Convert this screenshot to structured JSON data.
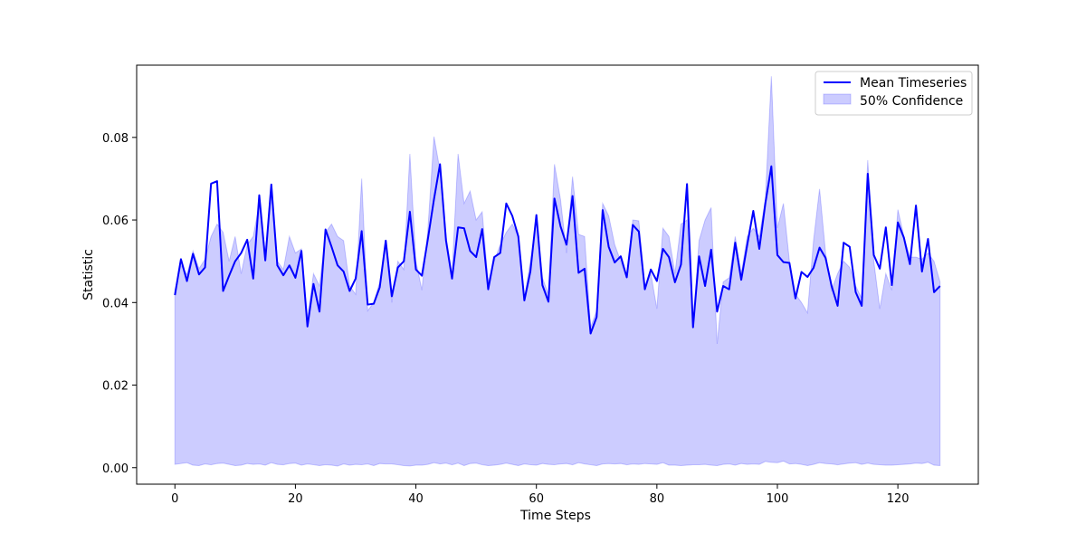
{
  "chart_data": {
    "type": "line",
    "title": "",
    "xlabel": "Time Steps",
    "ylabel": "Statistic",
    "xlim": [
      -6.35,
      133.35
    ],
    "ylim": [
      -0.004,
      0.0975
    ],
    "xticks": [
      0,
      20,
      40,
      60,
      80,
      100,
      120
    ],
    "xtick_labels": [
      "0",
      "20",
      "40",
      "60",
      "80",
      "100",
      "120"
    ],
    "yticks": [
      0.0,
      0.02,
      0.04,
      0.06,
      0.08
    ],
    "ytick_labels": [
      "0.00",
      "0.02",
      "0.04",
      "0.06",
      "0.08"
    ],
    "grid": false,
    "legend_position": "upper right",
    "x": [
      0,
      1,
      2,
      3,
      4,
      5,
      6,
      7,
      8,
      9,
      10,
      11,
      12,
      13,
      14,
      15,
      16,
      17,
      18,
      19,
      20,
      21,
      22,
      23,
      24,
      25,
      26,
      27,
      28,
      29,
      30,
      31,
      32,
      33,
      34,
      35,
      36,
      37,
      38,
      39,
      40,
      41,
      42,
      43,
      44,
      45,
      46,
      47,
      48,
      49,
      50,
      51,
      52,
      53,
      54,
      55,
      56,
      57,
      58,
      59,
      60,
      61,
      62,
      63,
      64,
      65,
      66,
      67,
      68,
      69,
      70,
      71,
      72,
      73,
      74,
      75,
      76,
      77,
      78,
      79,
      80,
      81,
      82,
      83,
      84,
      85,
      86,
      87,
      88,
      89,
      90,
      91,
      92,
      93,
      94,
      95,
      96,
      97,
      98,
      99,
      100,
      101,
      102,
      103,
      104,
      105,
      106,
      107,
      108,
      109,
      110,
      111,
      112,
      113,
      114,
      115,
      116,
      117,
      118,
      119,
      120,
      121,
      122,
      123,
      124,
      125,
      126,
      127
    ],
    "series": [
      {
        "name": "Mean Timeseries",
        "kind": "line",
        "color": "#0000ff",
        "values": [
          0.0418,
          0.0505,
          0.0452,
          0.0518,
          0.0468,
          0.0485,
          0.0688,
          0.0694,
          0.0428,
          0.0465,
          0.05,
          0.052,
          0.0552,
          0.0458,
          0.066,
          0.0502,
          0.0686,
          0.049,
          0.0466,
          0.049,
          0.046,
          0.0525,
          0.0342,
          0.0445,
          0.0378,
          0.0577,
          0.0535,
          0.049,
          0.0475,
          0.0428,
          0.0458,
          0.0573,
          0.0395,
          0.0397,
          0.0437,
          0.055,
          0.0415,
          0.0485,
          0.05,
          0.062,
          0.048,
          0.0465,
          0.0555,
          0.065,
          0.0735,
          0.055,
          0.0458,
          0.0582,
          0.058,
          0.0525,
          0.051,
          0.0578,
          0.0432,
          0.051,
          0.052,
          0.064,
          0.061,
          0.056,
          0.0405,
          0.0475,
          0.0612,
          0.0442,
          0.0402,
          0.0652,
          0.0585,
          0.054,
          0.0658,
          0.0472,
          0.0482,
          0.0325,
          0.0365,
          0.0624,
          0.0535,
          0.0497,
          0.0512,
          0.0461,
          0.0588,
          0.0572,
          0.0432,
          0.048,
          0.0452,
          0.053,
          0.051,
          0.0449,
          0.0492,
          0.0687,
          0.034,
          0.0512,
          0.044,
          0.0528,
          0.0378,
          0.044,
          0.0432,
          0.0545,
          0.0455,
          0.054,
          0.0622,
          0.053,
          0.064,
          0.073,
          0.0515,
          0.0498,
          0.0496,
          0.041,
          0.0474,
          0.0462,
          0.0484,
          0.0533,
          0.0508,
          0.044,
          0.0392,
          0.0545,
          0.0535,
          0.0425,
          0.0392,
          0.0712,
          0.0515,
          0.0482,
          0.0582,
          0.0442,
          0.0594,
          0.0557,
          0.0493,
          0.0635,
          0.0475,
          0.0554,
          0.0425,
          0.044
        ]
      },
      {
        "name": "50% Confidence",
        "kind": "band",
        "color": "#0000ff",
        "opacity": 0.2,
        "upper": [
          0.043,
          0.049,
          0.0468,
          0.0525,
          0.0482,
          0.0505,
          0.056,
          0.059,
          0.057,
          0.05,
          0.056,
          0.047,
          0.054,
          0.056,
          0.064,
          0.052,
          0.066,
          0.05,
          0.048,
          0.056,
          0.052,
          0.053,
          0.036,
          0.047,
          0.044,
          0.057,
          0.059,
          0.056,
          0.055,
          0.044,
          0.042,
          0.07,
          0.038,
          0.04,
          0.045,
          0.054,
          0.04,
          0.05,
          0.048,
          0.076,
          0.05,
          0.043,
          0.058,
          0.0802,
          0.072,
          0.056,
          0.047,
          0.076,
          0.064,
          0.067,
          0.06,
          0.062,
          0.045,
          0.05,
          0.054,
          0.057,
          0.059,
          0.056,
          0.041,
          0.05,
          0.06,
          0.046,
          0.042,
          0.0735,
          0.065,
          0.052,
          0.0705,
          0.0565,
          0.056,
          0.034,
          0.038,
          0.064,
          0.061,
          0.054,
          0.05,
          0.046,
          0.06,
          0.0598,
          0.044,
          0.047,
          0.0385,
          0.058,
          0.056,
          0.047,
          0.059,
          0.06,
          0.035,
          0.055,
          0.06,
          0.063,
          0.03,
          0.045,
          0.046,
          0.056,
          0.047,
          0.056,
          0.058,
          0.056,
          0.065,
          0.0948,
          0.058,
          0.064,
          0.05,
          0.042,
          0.04,
          0.0375,
          0.055,
          0.0675,
          0.052,
          0.043,
          0.047,
          0.05,
          0.0485,
          0.044,
          0.041,
          0.0745,
          0.05,
          0.0385,
          0.047,
          0.043,
          0.0625,
          0.056,
          0.051,
          0.051,
          0.0505,
          0.052,
          0.05,
          0.045
        ],
        "lower": [
          0.0008,
          0.001,
          0.0012,
          0.0006,
          0.0005,
          0.0009,
          0.0007,
          0.001,
          0.0011,
          0.0008,
          0.0005,
          0.0006,
          0.001,
          0.0008,
          0.0009,
          0.0006,
          0.0012,
          0.0008,
          0.0007,
          0.001,
          0.0011,
          0.0006,
          0.0009,
          0.0007,
          0.0005,
          0.0007,
          0.0006,
          0.0004,
          0.0009,
          0.0006,
          0.0008,
          0.0007,
          0.0009,
          0.0005,
          0.001,
          0.0009,
          0.0009,
          0.0007,
          0.0005,
          0.0004,
          0.0006,
          0.0006,
          0.0008,
          0.0012,
          0.0009,
          0.0011,
          0.0007,
          0.0011,
          0.0005,
          0.001,
          0.0011,
          0.0007,
          0.0005,
          0.0006,
          0.0008,
          0.0011,
          0.0008,
          0.0005,
          0.0009,
          0.0007,
          0.0006,
          0.001,
          0.0008,
          0.0007,
          0.0009,
          0.001,
          0.0007,
          0.0012,
          0.0009,
          0.0007,
          0.0005,
          0.0009,
          0.001,
          0.0009,
          0.001,
          0.0007,
          0.0009,
          0.0008,
          0.001,
          0.0009,
          0.0008,
          0.0012,
          0.0006,
          0.0006,
          0.0005,
          0.0006,
          0.0007,
          0.0007,
          0.0008,
          0.0006,
          0.0005,
          0.0008,
          0.0009,
          0.0006,
          0.001,
          0.0008,
          0.0009,
          0.0008,
          0.0015,
          0.0013,
          0.0012,
          0.0016,
          0.0009,
          0.001,
          0.0008,
          0.0005,
          0.0008,
          0.0012,
          0.001,
          0.0009,
          0.0007,
          0.0009,
          0.0011,
          0.0012,
          0.0008,
          0.0011,
          0.0008,
          0.0007,
          0.0006,
          0.0006,
          0.0007,
          0.0008,
          0.0009,
          0.0011,
          0.001,
          0.0013,
          0.0006,
          0.0005
        ]
      }
    ]
  }
}
